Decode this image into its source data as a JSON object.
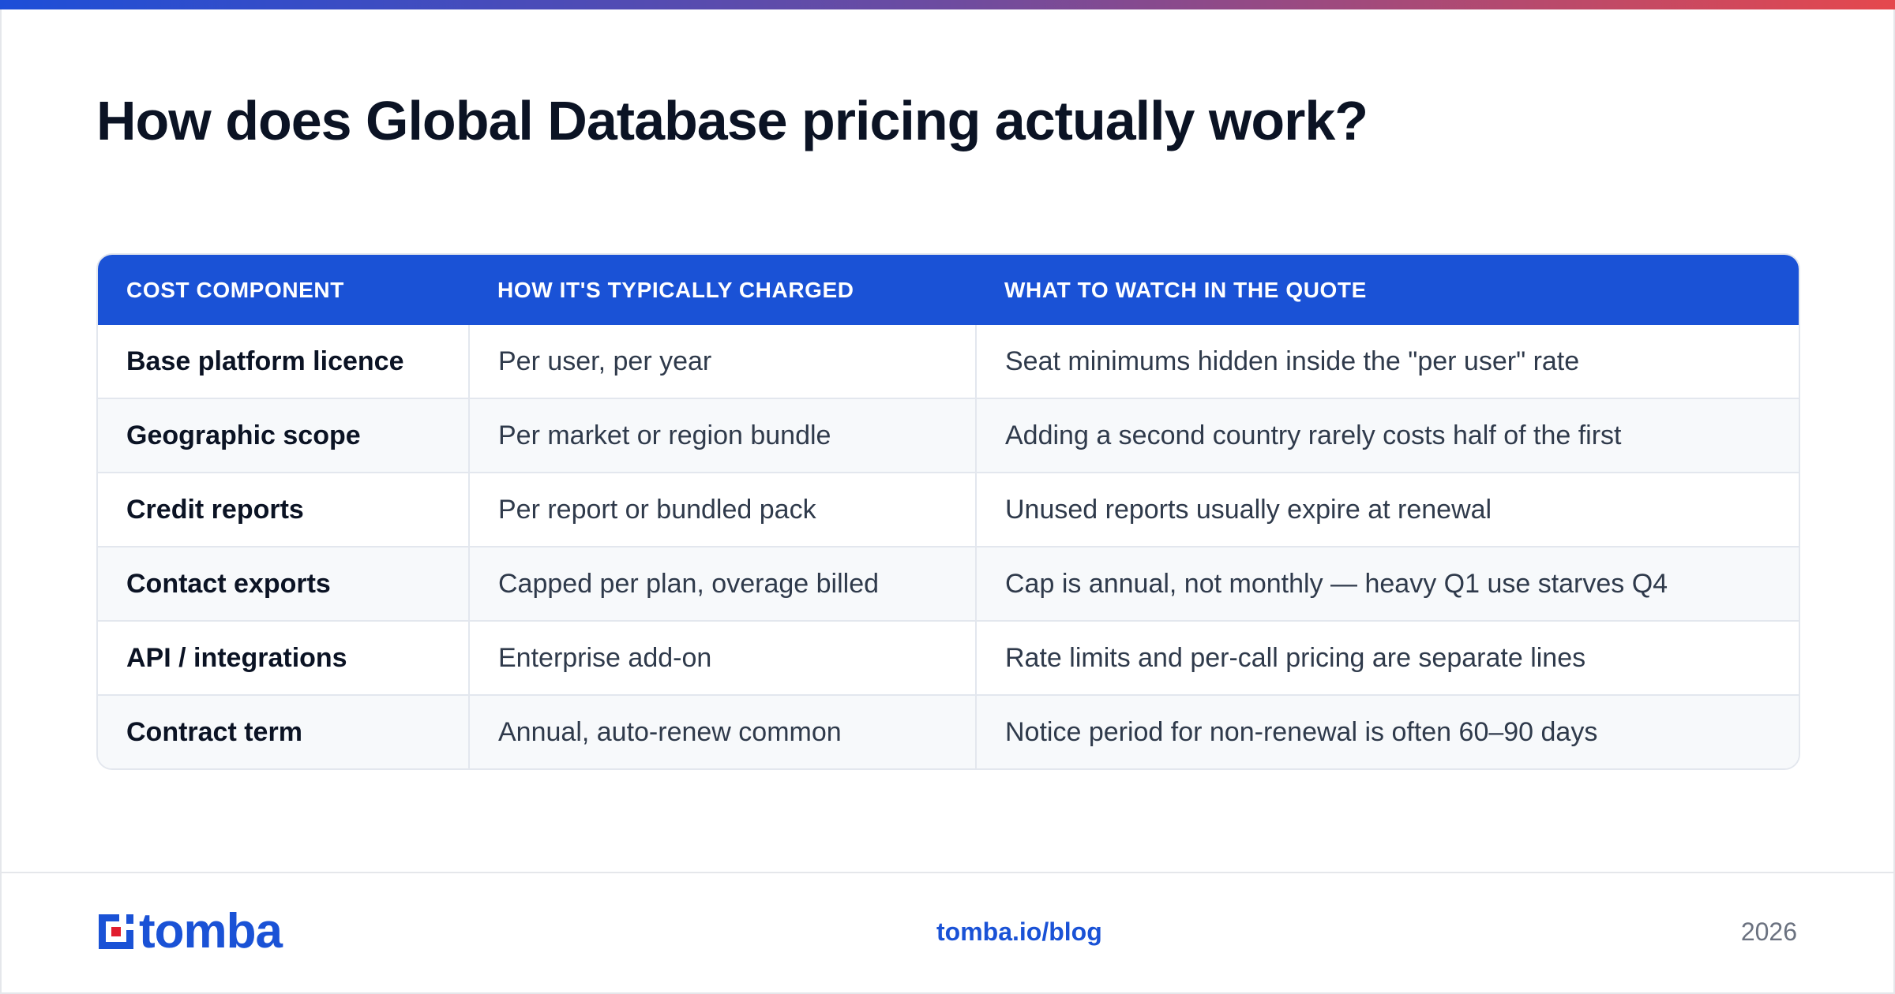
{
  "title": "How does Global Database pricing actually work?",
  "colors": {
    "accent": "#1a52d6",
    "gradient_start": "#1d4ed8",
    "gradient_end": "#e5484d",
    "logo_mark_red": "#e11d2e"
  },
  "table": {
    "headers": [
      "COST COMPONENT",
      "HOW IT'S TYPICALLY CHARGED",
      "WHAT TO WATCH IN THE QUOTE"
    ],
    "rows": [
      [
        "Base platform licence",
        "Per user, per year",
        "Seat minimums hidden inside the \"per user\" rate"
      ],
      [
        "Geographic scope",
        "Per market or region bundle",
        "Adding a second country rarely costs half of the first"
      ],
      [
        "Credit reports",
        "Per report or bundled pack",
        "Unused reports usually expire at renewal"
      ],
      [
        "Contact exports",
        "Capped per plan, overage billed",
        "Cap is annual, not monthly — heavy Q1 use starves Q4"
      ],
      [
        "API / integrations",
        "Enterprise add-on",
        "Rate limits and per-call pricing are separate lines"
      ],
      [
        "Contract term",
        "Annual, auto-renew common",
        "Notice period for non-renewal is often 60–90 days"
      ]
    ]
  },
  "footer": {
    "logo_text": "tomba",
    "link": "tomba.io/blog",
    "year": "2026"
  }
}
